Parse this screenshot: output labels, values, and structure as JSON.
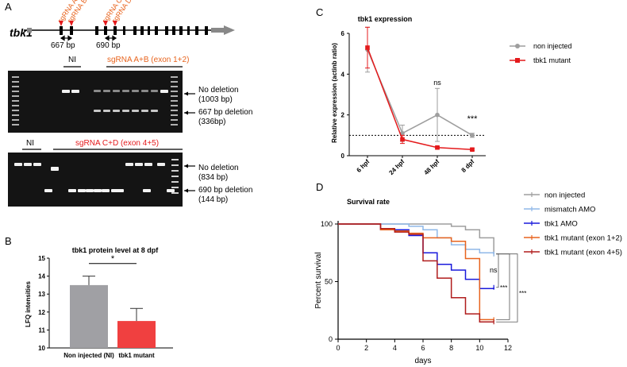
{
  "panels": {
    "a": {
      "letter": "A",
      "gene_label": "tbk1",
      "sgrnas": [
        "sgRNA A",
        "sgRNA B",
        "sgRNA C",
        "sgRNA D"
      ],
      "span1": "667 bp",
      "span2": "690 bp",
      "gel1": {
        "ni": "NI",
        "group": "sgRNA A+B (exon 1+2)",
        "band1": [
          "No deletion",
          "(1003 bp)"
        ],
        "band2": [
          "667 bp deletion",
          "(336bp)"
        ]
      },
      "gel2": {
        "ni": "NI",
        "group": "sgRNA C+D (exon 4+5)",
        "band1": [
          "No deletion",
          "(834 bp)"
        ],
        "band2": [
          "690 bp deletion",
          "(144 bp)"
        ]
      }
    },
    "b": {
      "letter": "B"
    },
    "c": {
      "letter": "C"
    },
    "d": {
      "letter": "D"
    }
  },
  "colors": {
    "orange": "#e8641e",
    "red": "#e41a1c",
    "gray": "#9e9e9e",
    "lightblue": "#8fb8e8",
    "blue": "#1a1adc",
    "darkred": "#b01c1c",
    "barred": "#f04040",
    "bargray": "#a0a0a4"
  },
  "chart_data": [
    {
      "type": "bar",
      "title": "tbk1 protein level at 8 dpf",
      "ylabel": "LFQ intensities",
      "categories": [
        "Non injected (NI)",
        "tbk1 mutant"
      ],
      "values": [
        13.5,
        11.5
      ],
      "errors": [
        0.5,
        0.7
      ],
      "ylim": [
        10,
        15
      ],
      "yticks": [
        10,
        11,
        12,
        13,
        14,
        15
      ],
      "significance": "*"
    },
    {
      "type": "line",
      "title": "tbk1 expression",
      "ylabel": "Relative expression (actinb ratio)",
      "categories": [
        "6 hpf",
        "24 hpf",
        "48 hpf",
        "8 dpf"
      ],
      "ylim": [
        0,
        6
      ],
      "yticks": [
        0,
        2,
        4,
        6
      ],
      "reference_line": 1,
      "series": [
        {
          "name": "non injected",
          "values": [
            5.2,
            1.1,
            2.0,
            1.0
          ],
          "errors": [
            1.1,
            0.4,
            1.3,
            0.1
          ]
        },
        {
          "name": "tbk1 mutant",
          "values": [
            5.3,
            0.8,
            0.4,
            0.3
          ],
          "errors": [
            1.0,
            0.2,
            0.05,
            0.05
          ]
        }
      ],
      "annotations": [
        "ns",
        "***"
      ]
    },
    {
      "type": "line",
      "title": "Survival rate",
      "xlabel": "days",
      "ylabel": "Percent survival",
      "xlim": [
        0,
        12
      ],
      "ylim": [
        0,
        100
      ],
      "xticks": [
        0,
        2,
        4,
        6,
        8,
        10,
        12
      ],
      "yticks": [
        0,
        50,
        100
      ],
      "legend_position": "top-right",
      "series": [
        {
          "name": "non injected",
          "steps": [
            [
              0,
              100
            ],
            [
              5,
              100
            ],
            [
              8,
              98
            ],
            [
              9,
              95
            ],
            [
              10,
              88
            ],
            [
              11,
              74
            ]
          ]
        },
        {
          "name": "mismatch AMO",
          "steps": [
            [
              0,
              100
            ],
            [
              5,
              98
            ],
            [
              6,
              95
            ],
            [
              7,
              88
            ],
            [
              8,
              82
            ],
            [
              9,
              78
            ],
            [
              10,
              75
            ],
            [
              11,
              74
            ]
          ]
        },
        {
          "name": "tbk1 AMO",
          "steps": [
            [
              0,
              100
            ],
            [
              3,
              95
            ],
            [
              5,
              90
            ],
            [
              6,
              75
            ],
            [
              7,
              65
            ],
            [
              8,
              60
            ],
            [
              9,
              52
            ],
            [
              10,
              44
            ],
            [
              11,
              45
            ]
          ]
        },
        {
          "name": "tbk1 mutant (exon 1+2)",
          "steps": [
            [
              0,
              100
            ],
            [
              3,
              95
            ],
            [
              4,
              94
            ],
            [
              5,
              92
            ],
            [
              6,
              88
            ],
            [
              7,
              88
            ],
            [
              8,
              85
            ],
            [
              9,
              70
            ],
            [
              10,
              17
            ],
            [
              11,
              17
            ]
          ]
        },
        {
          "name": "tbk1 mutant (exon 4+5)",
          "steps": [
            [
              0,
              100
            ],
            [
              3,
              96
            ],
            [
              4,
              93
            ],
            [
              5,
              91
            ],
            [
              6,
              68
            ],
            [
              7,
              53
            ],
            [
              8,
              36
            ],
            [
              9,
              22
            ],
            [
              10,
              15
            ],
            [
              11,
              15
            ]
          ]
        }
      ],
      "annotations": [
        "ns",
        "***",
        "***"
      ]
    }
  ]
}
